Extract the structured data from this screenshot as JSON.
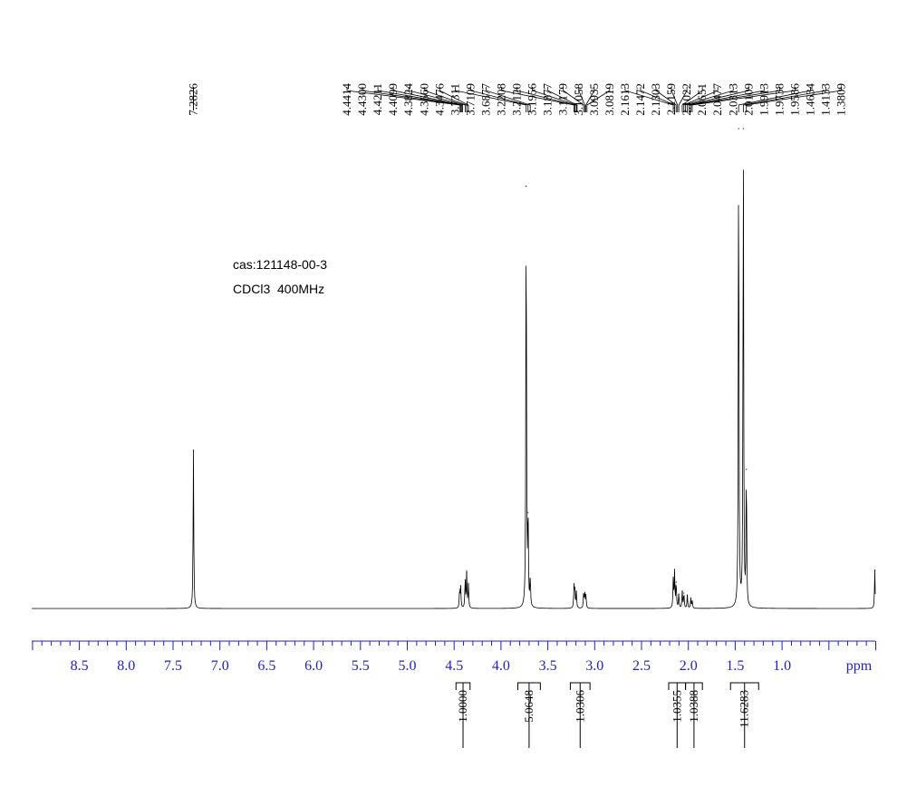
{
  "info": {
    "cas": "cas:121148-00-3",
    "conditions": "CDCl3  400MHz"
  },
  "chart_data": {
    "type": "line",
    "title": "",
    "xlabel": "ppm",
    "ylabel": "",
    "xlim": [
      9.0,
      0.0
    ],
    "x_reversed": true,
    "axis_color": "#1f1fcc",
    "spectrum_color": "#000000",
    "x_ticks": [
      "8.5",
      "8.0",
      "7.5",
      "7.0",
      "6.5",
      "6.0",
      "5.5",
      "5.0",
      "4.5",
      "4.0",
      "3.5",
      "3.0",
      "2.5",
      "2.0",
      "1.5",
      "1.0"
    ],
    "peak_picks": [
      "7.2826"
    ],
    "peak_picks_group": [
      "4.4414",
      "4.4300",
      "4.4211",
      "4.4099",
      "4.3824",
      "4.3660",
      "4.3476",
      "3.7311",
      "3.7109",
      "3.6877",
      "3.2208",
      "3.2120",
      "3.1956",
      "3.1877",
      "3.1179",
      "3.1058",
      "3.0935",
      "3.0819",
      "2.1613",
      "2.1472",
      "2.1303",
      "2.1159",
      "2.1022",
      "2.0651",
      "2.0477",
      "2.0313",
      "2.0109",
      "1.9913",
      "1.9738",
      "1.9586",
      "1.4634",
      "1.4133",
      "1.3809"
    ],
    "integrals": [
      {
        "from": 4.48,
        "to": 4.33,
        "label": "1.0000"
      },
      {
        "from": 3.82,
        "to": 3.58,
        "label": "5.0648"
      },
      {
        "from": 3.26,
        "to": 3.05,
        "label": "1.0306"
      },
      {
        "from": 2.21,
        "to": 2.03,
        "label": "1.0355"
      },
      {
        "from": 2.03,
        "to": 1.85,
        "label": "1.0388"
      },
      {
        "from": 1.55,
        "to": 1.25,
        "label": "11.6283"
      }
    ],
    "peaks": [
      {
        "x": 7.2826,
        "y": 0.33
      },
      {
        "x": 4.4414,
        "y": 0.04
      },
      {
        "x": 4.43,
        "y": 0.045
      },
      {
        "x": 4.3824,
        "y": 0.06
      },
      {
        "x": 4.366,
        "y": 0.075
      },
      {
        "x": 4.3476,
        "y": 0.05
      },
      {
        "x": 3.7311,
        "y": 0.88
      },
      {
        "x": 3.7109,
        "y": 0.2
      },
      {
        "x": 3.6877,
        "y": 0.06
      },
      {
        "x": 3.2208,
        "y": 0.045
      },
      {
        "x": 3.212,
        "y": 0.04
      },
      {
        "x": 3.1956,
        "y": 0.035
      },
      {
        "x": 3.1179,
        "y": 0.03
      },
      {
        "x": 3.1058,
        "y": 0.032
      },
      {
        "x": 3.0935,
        "y": 0.028
      },
      {
        "x": 2.1613,
        "y": 0.06
      },
      {
        "x": 2.1472,
        "y": 0.075
      },
      {
        "x": 2.1303,
        "y": 0.055
      },
      {
        "x": 2.1022,
        "y": 0.03
      },
      {
        "x": 2.0651,
        "y": 0.035
      },
      {
        "x": 2.0477,
        "y": 0.032
      },
      {
        "x": 2.0109,
        "y": 0.028
      },
      {
        "x": 1.9738,
        "y": 0.022
      },
      {
        "x": 1.9586,
        "y": 0.015
      },
      {
        "x": 1.4634,
        "y": 1.0
      },
      {
        "x": 1.4133,
        "y": 1.0
      },
      {
        "x": 1.3809,
        "y": 0.29
      },
      {
        "x": 0.01,
        "y": 0.08
      }
    ]
  }
}
